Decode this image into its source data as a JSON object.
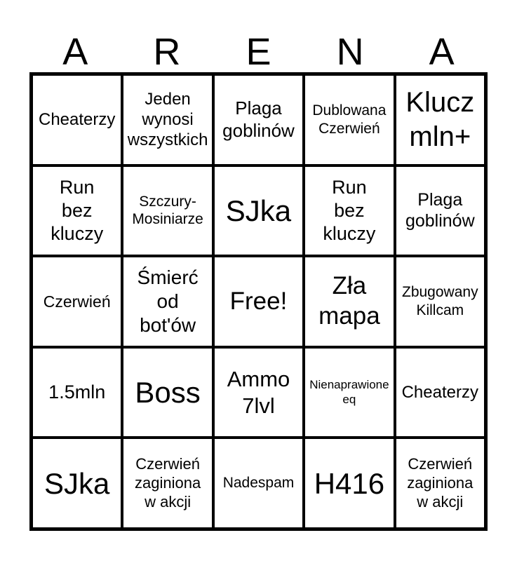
{
  "page": {
    "background_color": "#ffffff",
    "text_color": "#000000",
    "grid_line_color": "#000000"
  },
  "title": {
    "text": "ARENA",
    "letters": [
      "A",
      "R",
      "E",
      "N",
      "A"
    ]
  },
  "grid": {
    "rows": 5,
    "columns": 5,
    "free_cell_index": 12,
    "cells": [
      {
        "text": "Cheaterzy"
      },
      {
        "text": "Jeden\nwynosi\nwszystkich"
      },
      {
        "text": "Plaga\ngoblinów"
      },
      {
        "text": "Dublowana\nCzerwień"
      },
      {
        "text": "Klucz\nmln+"
      },
      {
        "text": "Run\nbez\nkluczy"
      },
      {
        "text": "Szczury-\nMosiniarze"
      },
      {
        "text": "SJka"
      },
      {
        "text": "Run\nbez\nkluczy"
      },
      {
        "text": "Plaga\ngoblinów"
      },
      {
        "text": "Czerwień"
      },
      {
        "text": "Śmierć\nod\nbot'ów"
      },
      {
        "text": "Free!"
      },
      {
        "text": "Zła\nmapa"
      },
      {
        "text": "Zbugowany\nKillcam"
      },
      {
        "text": "1.5mln"
      },
      {
        "text": "Boss"
      },
      {
        "text": "Ammo\n7lvl"
      },
      {
        "text": "Nienaprawione\neq"
      },
      {
        "text": "Cheaterzy"
      },
      {
        "text": "SJka"
      },
      {
        "text": "Czerwień\nzaginiona\nw akcji"
      },
      {
        "text": "Nadespam"
      },
      {
        "text": "H416"
      },
      {
        "text": "Czerwień\nzaginiona\nw akcji"
      }
    ]
  }
}
